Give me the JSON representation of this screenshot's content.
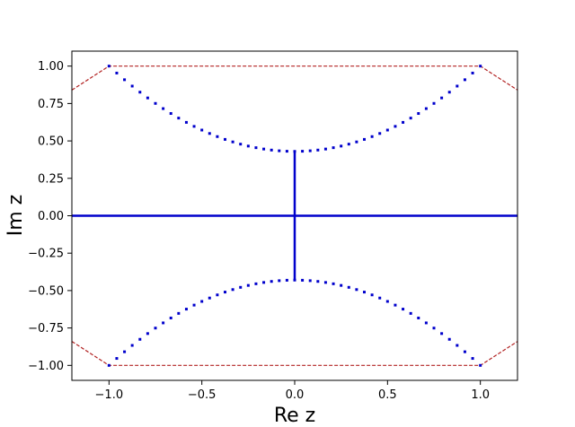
{
  "chart_data": {
    "type": "scatter",
    "xlabel": "Re z",
    "ylabel": "Im z",
    "xlim": [
      -1.2,
      1.2
    ],
    "ylim": [
      -1.1,
      1.1
    ],
    "x_ticks": [
      -1.0,
      -0.5,
      0.0,
      0.5,
      1.0
    ],
    "x_tick_labels": [
      "−1.0",
      "−0.5",
      "0.0",
      "0.5",
      "1.0"
    ],
    "y_ticks": [
      1.0,
      0.75,
      0.5,
      0.25,
      0.0,
      -0.25,
      -0.5,
      -0.75,
      -1.0
    ],
    "y_tick_labels": [
      "1.00",
      "0.75",
      "0.50",
      "0.25",
      "0.00",
      "−0.25",
      "−0.50",
      "−0.75",
      "−1.00"
    ],
    "grid": false,
    "colors": {
      "points": "#0000cc",
      "boundary": "#b22222"
    },
    "boundary_lines": [
      {
        "x": [
          -1.2,
          -1.0,
          1.0,
          1.2
        ],
        "y": [
          0.84,
          1.0,
          1.0,
          0.84
        ]
      },
      {
        "x": [
          -1.2,
          -1.0,
          1.0,
          1.2
        ],
        "y": [
          -0.84,
          -1.0,
          -1.0,
          -0.84
        ]
      }
    ],
    "series": [
      {
        "shape": "segment",
        "x": [
          -1.2,
          1.2
        ],
        "y": [
          0.0,
          0.0
        ]
      },
      {
        "shape": "segment",
        "x": [
          0.0,
          0.0
        ],
        "y": [
          -0.43,
          0.43
        ]
      },
      {
        "shape": "curve",
        "x_range": [
          -1.0,
          1.0
        ],
        "y_at_center": 0.43,
        "y_at_edge": 1.0
      },
      {
        "shape": "curve",
        "x_range": [
          -1.0,
          1.0
        ],
        "y_at_center": -0.43,
        "y_at_edge": -1.0
      }
    ]
  }
}
